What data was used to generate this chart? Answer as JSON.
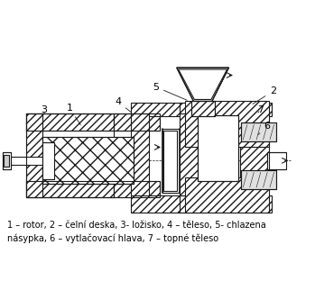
{
  "caption_line1": "1 – rotor, 2 – čelní deska, 3- ložisko, 4 – těleso, 5- chlazena",
  "caption_line2": "násypka, 6 – vytlačovací hlava, 7 – topné těleso",
  "bg_color": "#ffffff",
  "line_color": "#1a1a1a",
  "caption_fontsize": 7.0,
  "label_fontsize": 8,
  "fig_width": 3.49,
  "fig_height": 3.12,
  "dpi": 100
}
